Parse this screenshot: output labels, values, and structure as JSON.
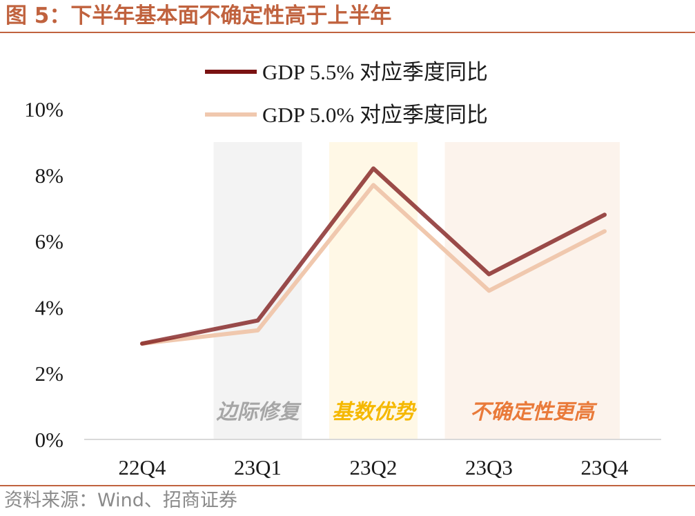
{
  "header": {
    "title": "图 5：下半年基本面不确定性高于上半年"
  },
  "footer": {
    "source": "资料来源：Wind、招商证券"
  },
  "chart_data": {
    "type": "line",
    "title": "",
    "xlabel": "",
    "ylabel": "",
    "categories": [
      "22Q4",
      "23Q1",
      "23Q2",
      "23Q3",
      "23Q4"
    ],
    "ylim": [
      0,
      10
    ],
    "yticks": [
      "0%",
      "2%",
      "4%",
      "6%",
      "8%",
      "10%"
    ],
    "ytick_values": [
      0,
      2,
      4,
      6,
      8,
      10
    ],
    "grid": false,
    "legend_position": "top",
    "series": [
      {
        "name": "GDP 5.5% 对应季度同比",
        "values": [
          2.9,
          3.6,
          8.2,
          5.0,
          6.8
        ],
        "color": "#7a1212"
      },
      {
        "name": "GDP 5.0% 对应季度同比",
        "values": [
          2.9,
          3.3,
          7.7,
          4.5,
          6.3
        ],
        "color": "#f0c8ae"
      }
    ],
    "bands": [
      {
        "label": "边际修复",
        "category": "23Q1",
        "fill": "#f3f3f3",
        "text_color": "#a6a6a6"
      },
      {
        "label": "基数优势",
        "category": "23Q2",
        "fill": "#fff8e6",
        "text_color": "#f5b800"
      },
      {
        "label": "不确定性更高",
        "category_from": "23Q3",
        "category_to": "23Q4",
        "fill": "#fcf3ec",
        "text_color": "#e97a3a"
      }
    ]
  }
}
